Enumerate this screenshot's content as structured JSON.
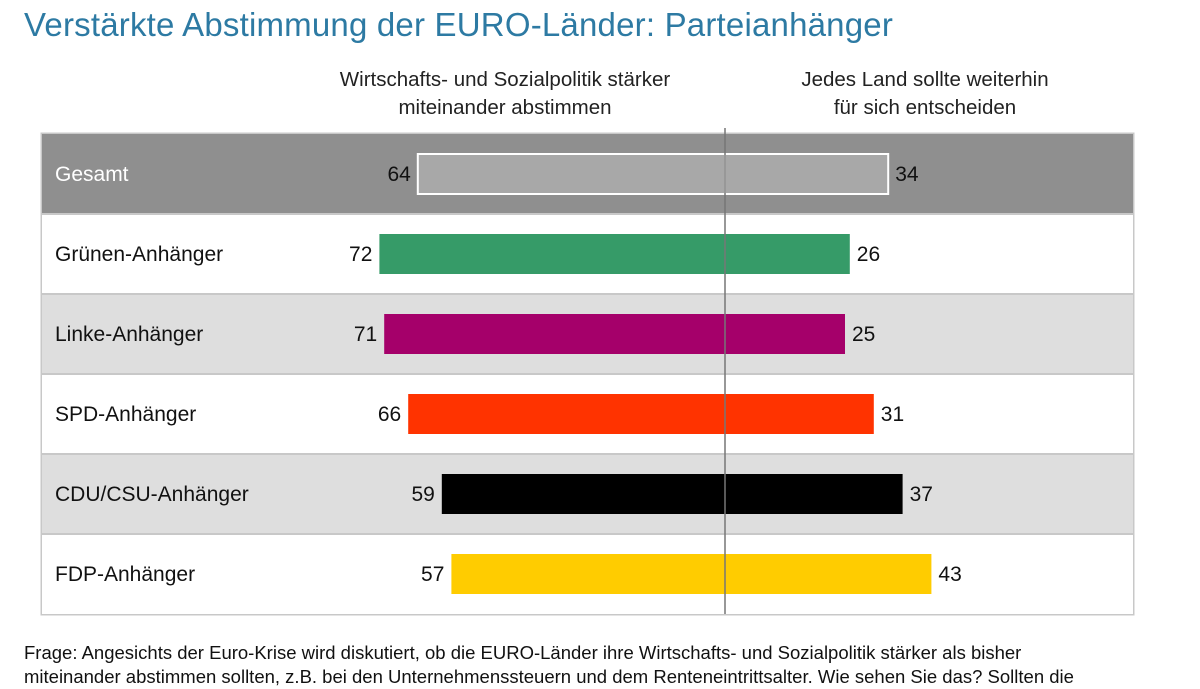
{
  "chart_data": {
    "type": "bar",
    "orientation": "horizontal-diverging",
    "title": "Verstärkte Abstimmung der EURO-Länder: Parteianhänger",
    "column_left": {
      "line1": "Wirtschafts- und Sozialpolitik stärker",
      "line2": "miteinander abstimmen"
    },
    "column_right": {
      "line1": "Jedes Land sollte weiterhin",
      "line2": "für sich entscheiden"
    },
    "categories": [
      "Gesamt",
      "Grünen-Anhänger",
      "Linke-Anhänger",
      "SPD-Anhänger",
      "CDU/CSU-Anhänger",
      "FDP-Anhänger"
    ],
    "series": [
      {
        "name": "Wirtschafts- und Sozialpolitik stärker miteinander abstimmen",
        "values": [
          64,
          72,
          71,
          66,
          59,
          57
        ]
      },
      {
        "name": "Jedes Land sollte weiterhin für sich entscheiden",
        "values": [
          34,
          26,
          25,
          31,
          37,
          43
        ]
      }
    ],
    "bar_colors": [
      "#a8a8a8",
      "#369b68",
      "#a5006a",
      "#ff3300",
      "#000000",
      "#ffcc00"
    ]
  },
  "footer": {
    "line1": "Frage: Angesichts der Euro-Krise wird diskutiert, ob die EURO-Länder ihre Wirtschafts- und Sozialpolitik stärker als bisher",
    "line2": "miteinander abstimmen sollten, z.B. bei den Unternehmenssteuern und dem Renteneintrittsalter. Wie sehen Sie das? Sollten die"
  }
}
